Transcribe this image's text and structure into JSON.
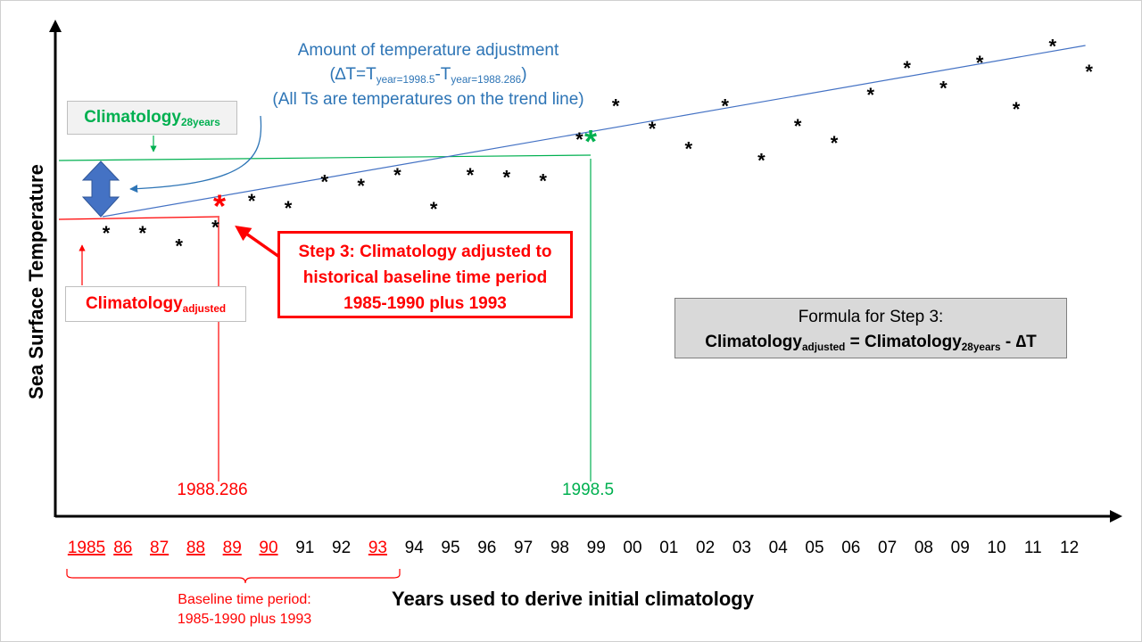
{
  "colors": {
    "red": "#ff0000",
    "green": "#00b050",
    "blue": "#2e75b6",
    "trend": "#4472c4",
    "black": "#000000",
    "box_gray": "#d9d9d9"
  },
  "annotation_top": {
    "line1": "Amount of temperature adjustment",
    "line2_pre": "(∆T=T",
    "line2_sub1": "year=1998.5",
    "line2_mid": "-T",
    "line2_sub2": "year=1988.286",
    "line2_post": ")",
    "line3": "(All Ts are temperatures on the trend line)"
  },
  "climatology_28": {
    "base": "Climatology",
    "sub": "28years"
  },
  "climatology_adj": {
    "base": "Climatology",
    "sub": "adjusted"
  },
  "step3": {
    "line1": "Step 3: Climatology adjusted to",
    "line2": "historical baseline time period",
    "line3": "1985-1990 plus 1993"
  },
  "formula": {
    "title": "Formula for Step 3:",
    "lhs_base": "Climatology",
    "lhs_sub": "adjusted",
    "eq": " = ",
    "rhs_base": "Climatology",
    "rhs_sub": "28years",
    "minus": " - ",
    "delta": "∆T"
  },
  "marker_labels": {
    "red": "1988.286",
    "green": "1998.5"
  },
  "y_axis_label": "Sea Surface Temperature",
  "x_axis_label": "Years used to derive initial climatology",
  "baseline": {
    "line1": "Baseline time period:",
    "line2": "1985-1990 plus 1993"
  },
  "chart_data": {
    "type": "scatter",
    "xlabel": "Years used to derive initial climatology",
    "ylabel": "Sea Surface Temperature",
    "x_ticks": [
      "1985",
      "86",
      "87",
      "88",
      "89",
      "90",
      "91",
      "92",
      "93",
      "94",
      "95",
      "96",
      "97",
      "98",
      "99",
      "00",
      "01",
      "02",
      "03",
      "04",
      "05",
      "06",
      "07",
      "08",
      "09",
      "10",
      "11",
      "12"
    ],
    "baseline_ticks": [
      "1985",
      "86",
      "87",
      "88",
      "89",
      "90",
      "93"
    ],
    "x_range": [
      1985,
      2012
    ],
    "points": [
      {
        "x": 1985,
        "y": 0.25
      },
      {
        "x": 1986,
        "y": 0.25
      },
      {
        "x": 1987,
        "y": 0.07
      },
      {
        "x": 1988,
        "y": 0.33
      },
      {
        "x": 1989,
        "y": 0.7
      },
      {
        "x": 1990,
        "y": 0.6
      },
      {
        "x": 1991,
        "y": 0.97
      },
      {
        "x": 1992,
        "y": 0.91
      },
      {
        "x": 1993,
        "y": 1.06
      },
      {
        "x": 1994,
        "y": 0.59
      },
      {
        "x": 1995,
        "y": 1.06
      },
      {
        "x": 1996,
        "y": 1.03
      },
      {
        "x": 1997,
        "y": 0.98
      },
      {
        "x": 1998,
        "y": 1.56
      },
      {
        "x": 1999,
        "y": 2.03
      },
      {
        "x": 2000,
        "y": 1.71
      },
      {
        "x": 2001,
        "y": 1.43
      },
      {
        "x": 2002,
        "y": 2.03
      },
      {
        "x": 2003,
        "y": 1.27
      },
      {
        "x": 2004,
        "y": 1.75
      },
      {
        "x": 2005,
        "y": 1.51
      },
      {
        "x": 2006,
        "y": 2.19
      },
      {
        "x": 2007,
        "y": 2.56
      },
      {
        "x": 2008,
        "y": 2.28
      },
      {
        "x": 2009,
        "y": 2.64
      },
      {
        "x": 2010,
        "y": 1.99
      },
      {
        "x": 2011,
        "y": 2.87
      },
      {
        "x": 2012,
        "y": 2.51
      }
    ],
    "trend": {
      "x": [
        1985,
        2012
      ],
      "y": [
        0.35,
        2.75
      ]
    },
    "reference_years": [
      1988.286,
      1998.5
    ]
  }
}
